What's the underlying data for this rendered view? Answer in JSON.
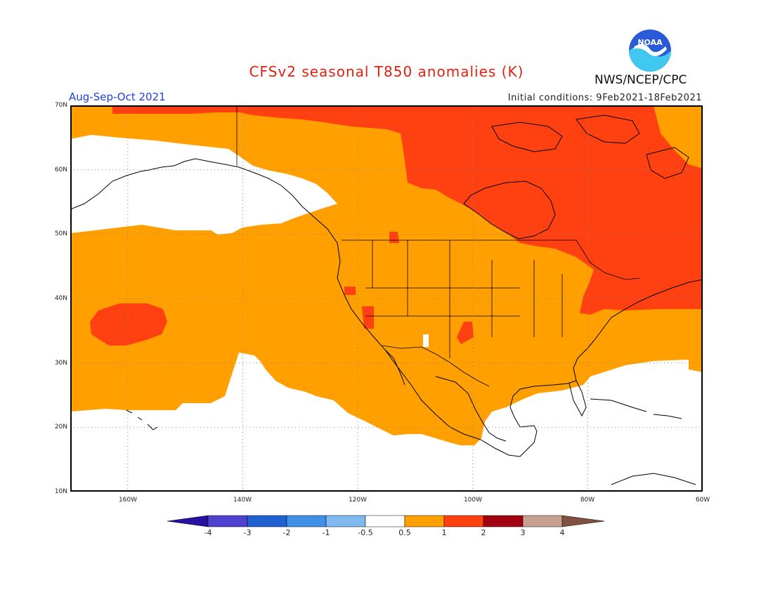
{
  "header": {
    "title": "CFSv2 seasonal T850 anomalies (K)",
    "period": "Aug-Sep-Oct 2021",
    "initial_conditions": "Initial conditions: 9Feb2021-18Feb2021",
    "agency": "NWS/NCEP/CPC",
    "logo_text": "NOAA"
  },
  "axes": {
    "lat_labels": [
      "70N",
      "60N",
      "50N",
      "40N",
      "30N",
      "20N",
      "10N"
    ],
    "lon_labels": [
      "160W",
      "140W",
      "120W",
      "100W",
      "80W",
      "60W"
    ]
  },
  "colorbar": {
    "ticks": [
      "-4",
      "-3",
      "-2",
      "-1",
      "-0.5",
      "0.5",
      "1",
      "2",
      "3",
      "4"
    ],
    "colors": [
      "#2a10a0",
      "#5040d0",
      "#2060d0",
      "#4090e8",
      "#80b8f0",
      "#ffffff",
      "#ffa000",
      "#ff4010",
      "#a00010",
      "#c8a090",
      "#805040"
    ]
  },
  "map_colors": {
    "ocean_land": "#ffffff",
    "anom_0_5_1": "#ffa000",
    "anom_1_2": "#ff4010",
    "coast": "#000000"
  }
}
